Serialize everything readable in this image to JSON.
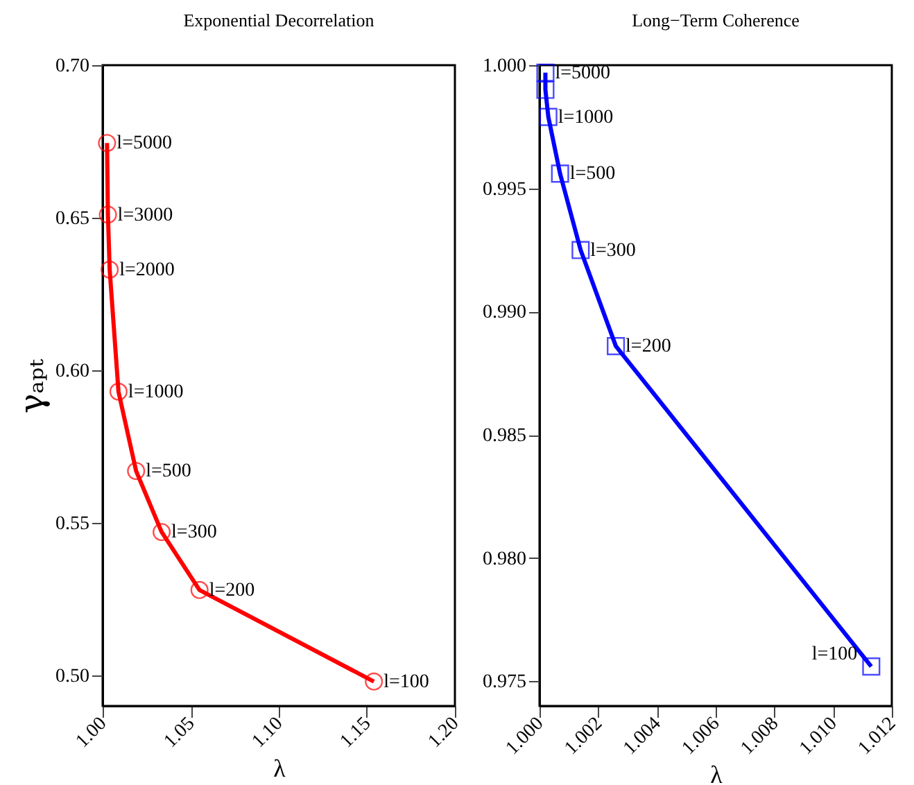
{
  "chart_data": [
    {
      "type": "line",
      "title": "Exponential Decorrelation",
      "xlabel": "λ",
      "ylabel": "γₐₚₜ",
      "marker": "circle",
      "x": [
        1.0025,
        1.003,
        1.004,
        1.009,
        1.019,
        1.0335,
        1.055,
        1.154
      ],
      "series": [
        {
          "color": "#ff0000",
          "values": [
            0.6745,
            0.651,
            0.633,
            0.593,
            0.567,
            0.547,
            0.528,
            0.498
          ]
        }
      ],
      "xlim": [
        1.0,
        1.2
      ],
      "xticks": [
        {
          "value": 1.0,
          "label": "1.00"
        },
        {
          "value": 1.05,
          "label": "1.05"
        },
        {
          "value": 1.1,
          "label": "1.10"
        },
        {
          "value": 1.15,
          "label": "1.15"
        },
        {
          "value": 1.2,
          "label": "1.20"
        }
      ],
      "ylim": [
        0.49,
        0.7
      ],
      "yticks": [
        {
          "value": 0.5,
          "label": "0.50"
        },
        {
          "value": 0.55,
          "label": "0.55"
        },
        {
          "value": 0.6,
          "label": "0.60"
        },
        {
          "value": 0.65,
          "label": "0.65"
        },
        {
          "value": 0.7,
          "label": "0.70"
        }
      ],
      "annotations": [
        {
          "text": "l=5000",
          "x": 1.0025,
          "y": 0.6745
        },
        {
          "text": "l=3000",
          "x": 1.003,
          "y": 0.651
        },
        {
          "text": "l=2000",
          "x": 1.004,
          "y": 0.633
        },
        {
          "text": "l=1000",
          "x": 1.009,
          "y": 0.593
        },
        {
          "text": "l=500",
          "x": 1.019,
          "y": 0.567
        },
        {
          "text": "l=300",
          "x": 1.0335,
          "y": 0.547
        },
        {
          "text": "l=200",
          "x": 1.055,
          "y": 0.528
        },
        {
          "text": "l=100",
          "x": 1.154,
          "y": 0.498
        }
      ]
    },
    {
      "type": "line",
      "title": "Long−Term Coherence",
      "xlabel": "λ",
      "marker": "square",
      "x": [
        1.0002,
        1.0002,
        1.0003,
        1.0007,
        1.0014,
        1.0026,
        1.0113
      ],
      "series": [
        {
          "color": "#0000ff",
          "values": [
            0.9997,
            0.999,
            0.9979,
            0.9956,
            0.9925,
            0.9886,
            0.9756
          ]
        }
      ],
      "xlim": [
        1.0,
        1.012
      ],
      "xticks": [
        {
          "value": 1.0,
          "label": "1.000"
        },
        {
          "value": 1.002,
          "label": "1.002"
        },
        {
          "value": 1.004,
          "label": "1.004"
        },
        {
          "value": 1.006,
          "label": "1.006"
        },
        {
          "value": 1.008,
          "label": "1.008"
        },
        {
          "value": 1.01,
          "label": "1.010"
        },
        {
          "value": 1.012,
          "label": "1.012"
        }
      ],
      "ylim": [
        0.974,
        1.0
      ],
      "yticks": [
        {
          "value": 0.975,
          "label": "0.975"
        },
        {
          "value": 0.98,
          "label": "0.980"
        },
        {
          "value": 0.985,
          "label": "0.985"
        },
        {
          "value": 0.99,
          "label": "0.990"
        },
        {
          "value": 0.995,
          "label": "0.995"
        },
        {
          "value": 1.0,
          "label": "1.000"
        }
      ],
      "annotations": [
        {
          "text": "l=5000",
          "x": 1.0002,
          "y": 0.9997
        },
        {
          "text": "l=1000",
          "x": 1.0003,
          "y": 0.9979
        },
        {
          "text": "l=500",
          "x": 1.0007,
          "y": 0.9956
        },
        {
          "text": "l=300",
          "x": 1.0014,
          "y": 0.9925
        },
        {
          "text": "l=200",
          "x": 1.0026,
          "y": 0.9886
        },
        {
          "text": "l=100",
          "x": 1.0113,
          "y": 0.9756
        }
      ]
    }
  ]
}
